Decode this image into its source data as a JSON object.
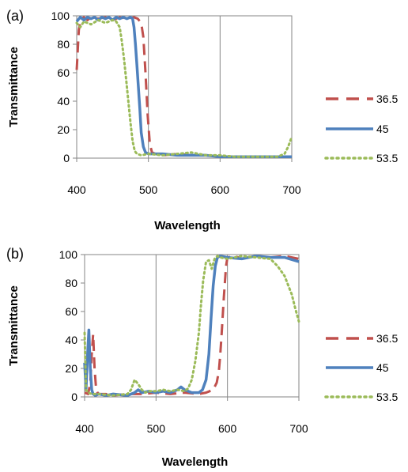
{
  "colors": {
    "36.5": "#C0504D",
    "45": "#4F81BD",
    "53.5": "#9BBB59",
    "frame": "#868686"
  },
  "chart_data": [
    {
      "type": "line",
      "panel_label": "(a)",
      "xlabel": "Wavelength",
      "ylabel": "Transmittance",
      "xlim": [
        400,
        700
      ],
      "ylim": [
        0,
        100
      ],
      "xticks": [
        "400",
        "500",
        "600",
        "700"
      ],
      "yticks": [
        "0",
        "20",
        "40",
        "60",
        "80",
        "100"
      ],
      "grid": "vertical",
      "legend_position": "right",
      "series": [
        {
          "name": "36.5",
          "style": "dashed",
          "x": [
            400,
            403,
            406,
            410,
            415,
            420,
            430,
            440,
            450,
            460,
            470,
            480,
            485,
            490,
            493,
            496,
            499,
            502,
            505,
            510,
            520,
            540,
            560,
            580,
            600,
            620,
            640,
            660,
            680,
            700
          ],
          "y": [
            62,
            90,
            98,
            99,
            97,
            99,
            98,
            99,
            97,
            99,
            98,
            99,
            98,
            95,
            85,
            60,
            30,
            10,
            4,
            3,
            2,
            3,
            2,
            2,
            1,
            1,
            1,
            1,
            1,
            1
          ]
        },
        {
          "name": "45",
          "style": "solid",
          "x": [
            400,
            405,
            410,
            415,
            420,
            425,
            430,
            435,
            440,
            445,
            450,
            455,
            460,
            465,
            470,
            475,
            478,
            480,
            482,
            484,
            486,
            488,
            490,
            493,
            496,
            500,
            510,
            520,
            540,
            560,
            580,
            600,
            620,
            640,
            660,
            680,
            700
          ],
          "y": [
            96,
            99,
            97,
            99,
            98,
            99,
            97,
            99,
            98,
            99,
            97,
            99,
            98,
            99,
            98,
            99,
            98,
            92,
            80,
            65,
            50,
            35,
            18,
            8,
            4,
            3,
            3,
            3,
            2,
            2,
            2,
            1,
            1,
            1,
            1,
            1,
            1
          ]
        },
        {
          "name": "53.5",
          "style": "dotted",
          "x": [
            400,
            405,
            410,
            420,
            430,
            440,
            450,
            455,
            460,
            463,
            466,
            469,
            472,
            475,
            478,
            481,
            484,
            490,
            500,
            520,
            540,
            560,
            580,
            600,
            620,
            640,
            660,
            680,
            690,
            695,
            700
          ],
          "y": [
            95,
            92,
            96,
            94,
            97,
            95,
            97,
            96,
            92,
            82,
            70,
            55,
            40,
            25,
            12,
            5,
            3,
            2,
            3,
            2,
            3,
            4,
            2,
            2,
            1,
            1,
            1,
            1,
            3,
            8,
            15
          ]
        }
      ]
    },
    {
      "type": "line",
      "panel_label": "(b)",
      "xlabel": "Wavelength",
      "ylabel": "Transmittance",
      "xlim": [
        400,
        700
      ],
      "ylim": [
        0,
        100
      ],
      "xticks": [
        "400",
        "500",
        "600",
        "700"
      ],
      "yticks": [
        "0",
        "20",
        "40",
        "60",
        "80",
        "100"
      ],
      "grid": "vertical",
      "legend_position": "right",
      "series": [
        {
          "name": "36.5",
          "style": "dashed",
          "x": [
            400,
            405,
            408,
            410,
            412,
            414,
            416,
            418,
            420,
            430,
            440,
            460,
            480,
            500,
            520,
            540,
            560,
            570,
            580,
            585,
            588,
            590,
            592,
            595,
            598,
            600,
            610,
            620,
            640,
            660,
            680,
            700
          ],
          "y": [
            3,
            2,
            10,
            30,
            44,
            20,
            6,
            3,
            2,
            2,
            1,
            2,
            2,
            3,
            2,
            3,
            2,
            3,
            5,
            10,
            18,
            30,
            45,
            70,
            92,
            98,
            99,
            97,
            99,
            98,
            99,
            97
          ]
        },
        {
          "name": "45",
          "style": "solid",
          "x": [
            400,
            402,
            404,
            406,
            408,
            410,
            412,
            415,
            420,
            430,
            440,
            460,
            470,
            475,
            480,
            490,
            500,
            510,
            520,
            530,
            535,
            540,
            550,
            560,
            565,
            570,
            574,
            577,
            580,
            583,
            586,
            590,
            600,
            620,
            640,
            660,
            680,
            700
          ],
          "y": [
            24,
            5,
            28,
            47,
            20,
            5,
            2,
            1,
            2,
            1,
            2,
            1,
            3,
            5,
            3,
            4,
            3,
            4,
            3,
            5,
            7,
            5,
            3,
            3,
            5,
            12,
            30,
            55,
            78,
            92,
            98,
            99,
            98,
            97,
            99,
            98,
            98,
            95
          ]
        },
        {
          "name": "53.5",
          "style": "dotted",
          "x": [
            400,
            402,
            405,
            410,
            420,
            440,
            460,
            465,
            470,
            475,
            480,
            485,
            490,
            500,
            510,
            520,
            530,
            540,
            545,
            550,
            555,
            560,
            563,
            566,
            570,
            574,
            578,
            582,
            586,
            590,
            600,
            620,
            640,
            660,
            670,
            680,
            690,
            695,
            700
          ],
          "y": [
            45,
            5,
            3,
            2,
            2,
            1,
            2,
            5,
            12,
            9,
            5,
            3,
            4,
            4,
            5,
            4,
            5,
            4,
            6,
            12,
            25,
            45,
            65,
            82,
            95,
            96,
            90,
            97,
            99,
            98,
            97,
            99,
            98,
            97,
            92,
            85,
            72,
            62,
            53
          ]
        }
      ]
    }
  ]
}
